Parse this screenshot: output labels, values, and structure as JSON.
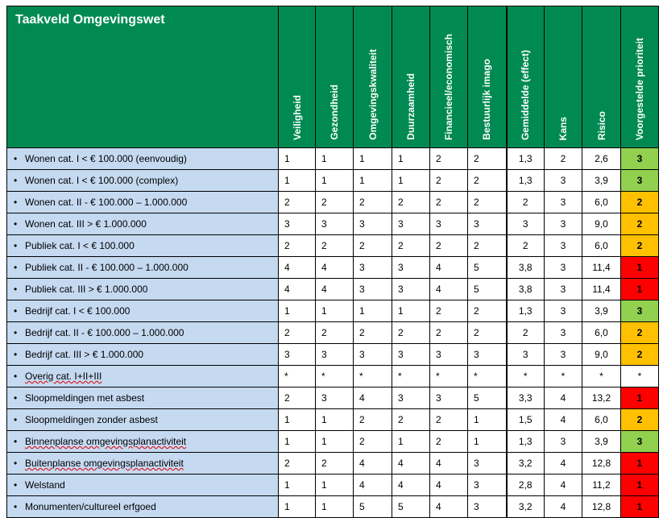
{
  "table": {
    "title": "Taakveld Omgevingswet",
    "columns": [
      "Veiligheid",
      "Gezondheid",
      "Omgevingskwaliteit",
      "Duurzaamheid",
      "Financieel/economisch",
      "Bestuurlijk imago",
      "Gemiddelde (effect)",
      "Kans",
      "Risico",
      "Voorgestelde prioriteit"
    ],
    "priority_colors": {
      "1": "#ff0000",
      "2": "#ffc000",
      "3": "#92d050",
      "*": "#ffffff"
    },
    "rows": [
      {
        "label": "Wonen cat. I < € 100.000 (eenvoudig)",
        "values": [
          "1",
          "1",
          "1",
          "1",
          "2",
          "2",
          "1,3",
          "2",
          "2,6"
        ],
        "priority": "3"
      },
      {
        "label": "Wonen cat. I < € 100.000 (complex)",
        "values": [
          "1",
          "1",
          "1",
          "1",
          "2",
          "2",
          "1,3",
          "3",
          "3,9"
        ],
        "priority": "3"
      },
      {
        "label": "Wonen cat. II - € 100.000 – 1.000.000",
        "values": [
          "2",
          "2",
          "2",
          "2",
          "2",
          "2",
          "2",
          "3",
          "6,0"
        ],
        "priority": "2"
      },
      {
        "label": "Wonen cat. III > € 1.000.000",
        "values": [
          "3",
          "3",
          "3",
          "3",
          "3",
          "3",
          "3",
          "3",
          "9,0"
        ],
        "priority": "2"
      },
      {
        "label": "Publiek cat. I < € 100.000",
        "values": [
          "2",
          "2",
          "2",
          "2",
          "2",
          "2",
          "2",
          "3",
          "6,0"
        ],
        "priority": "2"
      },
      {
        "label": "Publiek cat. II - € 100.000 – 1.000.000",
        "values": [
          "4",
          "4",
          "3",
          "3",
          "4",
          "5",
          "3,8",
          "3",
          "11,4"
        ],
        "priority": "1"
      },
      {
        "label": "Publiek cat. III > € 1.000.000",
        "values": [
          "4",
          "4",
          "3",
          "3",
          "4",
          "5",
          "3,8",
          "3",
          "11,4"
        ],
        "priority": "1"
      },
      {
        "label": "Bedrijf cat. I < € 100.000",
        "values": [
          "1",
          "1",
          "1",
          "1",
          "2",
          "2",
          "1,3",
          "3",
          "3,9"
        ],
        "priority": "3"
      },
      {
        "label": "Bedrijf cat. II - € 100.000 – 1.000.000",
        "values": [
          "2",
          "2",
          "2",
          "2",
          "2",
          "2",
          "2",
          "3",
          "6,0"
        ],
        "priority": "2"
      },
      {
        "label": "Bedrijf cat. III > € 1.000.000",
        "values": [
          "3",
          "3",
          "3",
          "3",
          "3",
          "3",
          "3",
          "3",
          "9,0"
        ],
        "priority": "2"
      },
      {
        "label": "Overig cat. I+II+III",
        "values": [
          "*",
          "*",
          "*",
          "*",
          "*",
          "*",
          "*",
          "*",
          "*"
        ],
        "priority": "*"
      },
      {
        "label": "Sloopmeldingen met asbest",
        "values": [
          "2",
          "3",
          "4",
          "3",
          "3",
          "5",
          "3,3",
          "4",
          "13,2"
        ],
        "priority": "1"
      },
      {
        "label": "Sloopmeldingen zonder asbest",
        "values": [
          "1",
          "1",
          "2",
          "2",
          "2",
          "1",
          "1,5",
          "4",
          "6,0"
        ],
        "priority": "2"
      },
      {
        "label": "Binnenplanse omgevingsplanactiviteit",
        "values": [
          "1",
          "1",
          "2",
          "1",
          "2",
          "1",
          "1,3",
          "3",
          "3,9"
        ],
        "priority": "3"
      },
      {
        "label": "Buitenplanse omgevingsplanactiviteit",
        "values": [
          "2",
          "2",
          "4",
          "4",
          "4",
          "3",
          "3,2",
          "4",
          "12,8"
        ],
        "priority": "1"
      },
      {
        "label": "Welstand",
        "values": [
          "1",
          "1",
          "4",
          "4",
          "4",
          "3",
          "2,8",
          "4",
          "11,2"
        ],
        "priority": "1"
      },
      {
        "label": "Monumenten/cultureel erfgoed",
        "values": [
          "1",
          "1",
          "5",
          "5",
          "4",
          "3",
          "3,2",
          "4",
          "12,8"
        ],
        "priority": "1"
      }
    ]
  }
}
